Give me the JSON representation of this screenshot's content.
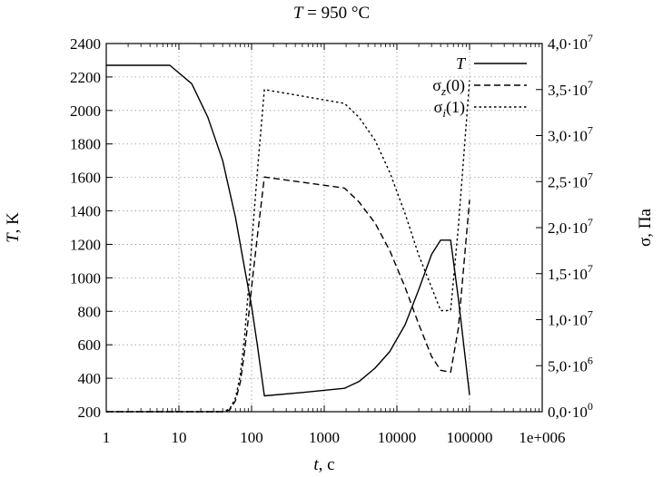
{
  "chart_data": {
    "type": "line",
    "title": "T = 950 °C",
    "title_parts": {
      "var": "T",
      "rest": " = 950 °C"
    },
    "xlabel": {
      "var": "t",
      "rest": ", c"
    },
    "ylabel_left": {
      "var": "T",
      "rest": ", K"
    },
    "ylabel_right": "σ, Па",
    "x_scale": "log",
    "xlim": [
      1,
      1000000
    ],
    "x_ticks": [
      1,
      10,
      100,
      1000,
      10000,
      100000,
      1000000
    ],
    "x_tick_labels": [
      "1",
      "10",
      "100",
      "1000",
      "10000",
      "100000",
      "1e+006"
    ],
    "ylim_left": [
      200,
      2400
    ],
    "y_left_ticks": [
      200,
      400,
      600,
      800,
      1000,
      1200,
      1400,
      1600,
      1800,
      2000,
      2200,
      2400
    ],
    "y_left_tick_labels": [
      "200",
      "400",
      "600",
      "800",
      "1000",
      "1200",
      "1400",
      "1600",
      "1800",
      "2000",
      "2200",
      "2400"
    ],
    "ylim_right": [
      0,
      40000000
    ],
    "y_right_ticks": [
      0,
      5000000,
      10000000,
      15000000,
      20000000,
      25000000,
      30000000,
      35000000,
      40000000
    ],
    "y_right_tick_labels": [
      {
        "m": "0,0",
        "e": "0"
      },
      {
        "m": "5,0",
        "e": "6"
      },
      {
        "m": "1,0",
        "e": "7"
      },
      {
        "m": "1,5",
        "e": "7"
      },
      {
        "m": "2,0",
        "e": "7"
      },
      {
        "m": "2,5",
        "e": "7"
      },
      {
        "m": "3,0",
        "e": "7"
      },
      {
        "m": "3,5",
        "e": "7"
      },
      {
        "m": "4,0",
        "e": "7"
      }
    ],
    "grid": true,
    "legend_position": "top-right",
    "series": [
      {
        "name": "T",
        "legend": {
          "base": "T",
          "sub": "",
          "rest": ""
        },
        "axis": "left",
        "style": "solid",
        "x": [
          1,
          7.5,
          15,
          25,
          40,
          60,
          80,
          100,
          120,
          150,
          500,
          1900,
          3000,
          5000,
          8000,
          13000,
          20000,
          30000,
          40000,
          55000,
          70000,
          100000
        ],
        "y": [
          2270,
          2270,
          2160,
          1960,
          1700,
          1360,
          1060,
          830,
          600,
          295,
          315,
          340,
          380,
          460,
          560,
          720,
          930,
          1140,
          1225,
          1225,
          880,
          300
        ]
      },
      {
        "name": "σz(0)",
        "legend": {
          "base": "σ",
          "sub": "z",
          "rest": "(0)"
        },
        "axis": "right",
        "style": "dashed",
        "x": [
          1,
          40,
          50,
          60,
          70,
          80,
          90,
          100,
          120,
          150,
          1900,
          3000,
          5000,
          8000,
          13000,
          20000,
          30000,
          40000,
          55000,
          70000,
          100000
        ],
        "y": [
          0,
          0,
          200000,
          1200000,
          3200000,
          6500000,
          10000000,
          13500000,
          19000000,
          25500000,
          24300000,
          22800000,
          20500000,
          17500000,
          13500000,
          9500000,
          6000000,
          4500000,
          4300000,
          9000000,
          23000000
        ]
      },
      {
        "name": "σi(1)",
        "legend": {
          "base": "σ",
          "sub": "i",
          "rest": "(1)"
        },
        "axis": "right",
        "style": "dotted",
        "x": [
          1,
          40,
          50,
          60,
          70,
          80,
          90,
          100,
          120,
          150,
          1900,
          3000,
          5000,
          8000,
          13000,
          20000,
          30000,
          40000,
          55000,
          70000,
          100000
        ],
        "y": [
          0,
          0,
          300000,
          1500000,
          4000000,
          8000000,
          13000000,
          18000000,
          26000000,
          35000000,
          33500000,
          32000000,
          29500000,
          26000000,
          21500000,
          17000000,
          13500000,
          11000000,
          11000000,
          20000000,
          36000000
        ]
      }
    ]
  }
}
